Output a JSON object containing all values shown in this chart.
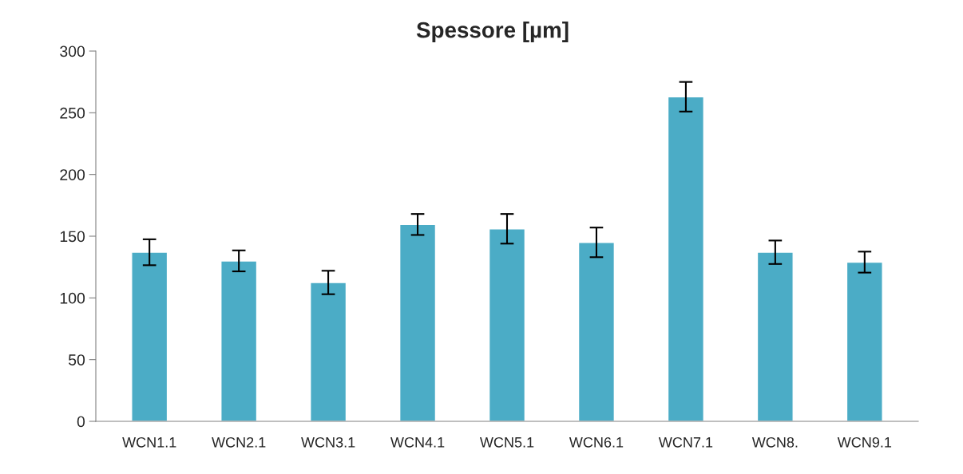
{
  "chart_data": {
    "type": "bar",
    "title": "Spessore [µm]",
    "categories": [
      "WCN1.1",
      "WCN2.1",
      "WCN3.1",
      "WCN4.1",
      "WCN5.1",
      "WCN6.1",
      "WCN7.1",
      "WCN8.",
      "WCN9.1"
    ],
    "values": [
      137,
      130,
      112.5,
      159.5,
      156,
      145,
      263,
      137,
      129
    ],
    "errors": [
      10.5,
      8.5,
      9.5,
      8.5,
      12,
      12,
      12,
      9.5,
      8.5
    ],
    "color": "#4bacc6",
    "ylim": [
      0,
      300
    ],
    "yticks": [
      0,
      50,
      100,
      150,
      200,
      250,
      300
    ],
    "grid": false
  }
}
